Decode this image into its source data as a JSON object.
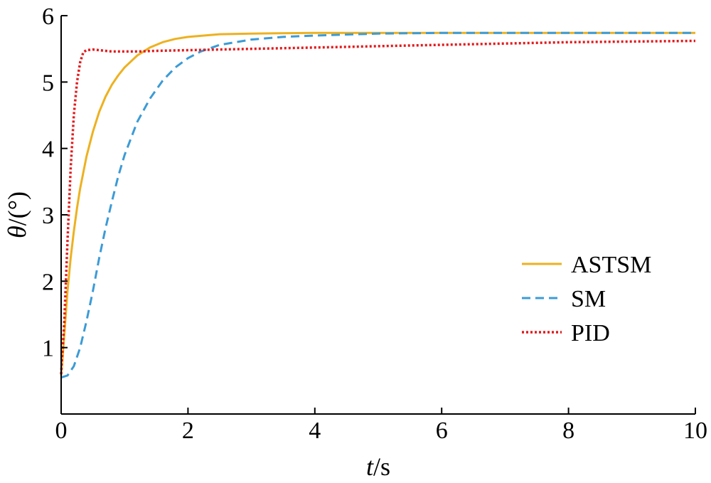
{
  "chart_data": {
    "type": "line",
    "xlabel": {
      "var": "t",
      "unit": "/s"
    },
    "ylabel": {
      "var": "θ",
      "unit": "/(°)"
    },
    "xlim": [
      0,
      10
    ],
    "ylim": [
      0,
      6
    ],
    "xticks": [
      0,
      2,
      4,
      6,
      8,
      10
    ],
    "yticks": [
      1,
      2,
      3,
      4,
      5,
      6
    ],
    "xtick_labels": [
      "0",
      "2",
      "4",
      "6",
      "8",
      "10"
    ],
    "ytick_labels": [
      "1",
      "2",
      "3",
      "4",
      "5",
      "6"
    ],
    "grid": false,
    "legend_position": "center-right",
    "series": [
      {
        "name": "ASTSM",
        "color": "#EDB120",
        "style": "solid",
        "x": [
          0,
          0.05,
          0.1,
          0.15,
          0.2,
          0.25,
          0.3,
          0.4,
          0.5,
          0.6,
          0.7,
          0.8,
          0.9,
          1.0,
          1.2,
          1.4,
          1.6,
          1.8,
          2.0,
          2.5,
          3.0,
          4.0,
          5.0,
          6.0,
          8.0,
          10.0
        ],
        "y": [
          0.58,
          1.2,
          1.85,
          2.35,
          2.75,
          3.1,
          3.4,
          3.88,
          4.25,
          4.55,
          4.78,
          4.96,
          5.1,
          5.22,
          5.4,
          5.52,
          5.6,
          5.65,
          5.68,
          5.72,
          5.73,
          5.74,
          5.74,
          5.74,
          5.74,
          5.74
        ]
      },
      {
        "name": "SM",
        "color": "#3C9BD6",
        "style": "dashed",
        "x": [
          0,
          0.1,
          0.2,
          0.3,
          0.4,
          0.5,
          0.6,
          0.7,
          0.8,
          0.9,
          1.0,
          1.2,
          1.4,
          1.6,
          1.8,
          2.0,
          2.2,
          2.5,
          3.0,
          3.5,
          4.0,
          5.0,
          6.0,
          8.0,
          10.0
        ],
        "y": [
          0.55,
          0.58,
          0.72,
          1.0,
          1.4,
          1.85,
          2.35,
          2.8,
          3.2,
          3.58,
          3.9,
          4.4,
          4.75,
          5.02,
          5.22,
          5.36,
          5.46,
          5.56,
          5.64,
          5.68,
          5.7,
          5.73,
          5.74,
          5.74,
          5.74
        ]
      },
      {
        "name": "PID",
        "color": "#E31A1C",
        "style": "dotted",
        "x": [
          0,
          0.05,
          0.1,
          0.15,
          0.2,
          0.25,
          0.3,
          0.35,
          0.4,
          0.5,
          0.6,
          0.7,
          0.8,
          1.0,
          1.2,
          1.5,
          2.0,
          3.0,
          4.0,
          5.0,
          6.0,
          7.0,
          8.0,
          9.0,
          10.0
        ],
        "y": [
          0.6,
          1.4,
          2.6,
          3.7,
          4.5,
          5.0,
          5.3,
          5.45,
          5.48,
          5.49,
          5.48,
          5.47,
          5.46,
          5.46,
          5.46,
          5.47,
          5.48,
          5.5,
          5.52,
          5.54,
          5.56,
          5.58,
          5.6,
          5.61,
          5.62
        ]
      }
    ]
  }
}
